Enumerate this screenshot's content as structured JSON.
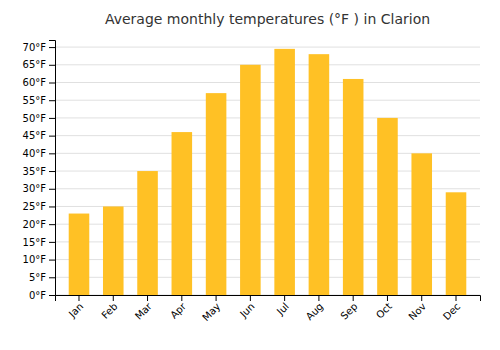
{
  "chart_data": {
    "type": "bar",
    "title": "Average monthly temperatures (°F ) in Clarion",
    "categories": [
      "Jan",
      "Feb",
      "Mar",
      "Apr",
      "May",
      "Jun",
      "Jul",
      "Aug",
      "Sep",
      "Oct",
      "Nov",
      "Dec"
    ],
    "values": [
      23,
      25,
      35,
      46,
      57,
      65,
      69.5,
      68,
      61,
      50,
      40,
      29
    ],
    "color": "#FFC125",
    "ylim": [
      0,
      72
    ],
    "yticks": [
      {
        "value": 0,
        "label": "0°F"
      },
      {
        "value": 5,
        "label": "5°F"
      },
      {
        "value": 10,
        "label": "10°F"
      },
      {
        "value": 15,
        "label": "15°F"
      },
      {
        "value": 20,
        "label": "20°F"
      },
      {
        "value": 25,
        "label": "25°F"
      },
      {
        "value": 30,
        "label": "30°F"
      },
      {
        "value": 35,
        "label": "35°F"
      },
      {
        "value": 40,
        "label": "40°F"
      },
      {
        "value": 45,
        "label": "45°F"
      },
      {
        "value": 50,
        "label": "50°F"
      },
      {
        "value": 55,
        "label": "55°F"
      },
      {
        "value": 60,
        "label": "60°F"
      },
      {
        "value": 65,
        "label": "65°F"
      },
      {
        "value": 70,
        "label": "70°F"
      }
    ],
    "grid": true
  }
}
